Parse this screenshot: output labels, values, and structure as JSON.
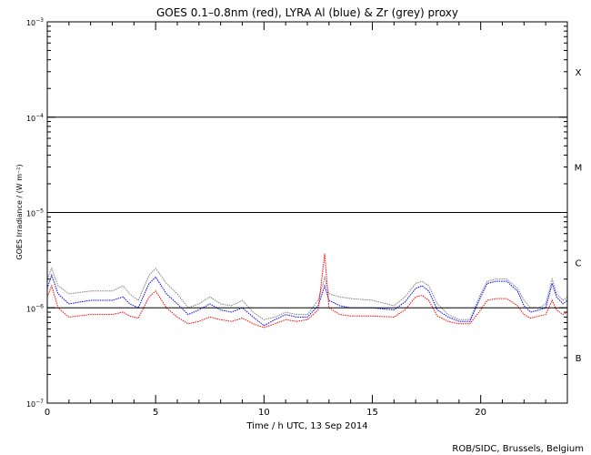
{
  "chart_data": {
    "type": "line",
    "title": "GOES 0.1–0.8nm (red), LYRA Al (blue) & Zr (grey) proxy",
    "xlabel": "Time / h UTC, 13 Sep 2014",
    "ylabel": "GOES Irradiance / (W m⁻²)",
    "xlim": [
      0,
      24
    ],
    "ylim": [
      1e-07,
      0.001
    ],
    "yscale": "log",
    "x_ticks": [
      0,
      5,
      10,
      15,
      20
    ],
    "x_tick_labels": [
      "0",
      "5",
      "10",
      "15",
      "20"
    ],
    "y_ticks": [
      1e-07,
      1e-06,
      1e-05,
      0.0001,
      0.001
    ],
    "y_tick_labels": [
      {
        "base": "10",
        "exp": "−7"
      },
      {
        "base": "10",
        "exp": "−6"
      },
      {
        "base": "10",
        "exp": "−5"
      },
      {
        "base": "10",
        "exp": "−4"
      },
      {
        "base": "10",
        "exp": "−3"
      }
    ],
    "class_lines": [
      1e-06,
      1e-05,
      0.0001
    ],
    "class_labels": [
      {
        "label": "X",
        "value": 0.0003
      },
      {
        "label": "M",
        "value": 3e-05
      },
      {
        "label": "C",
        "value": 3e-06
      },
      {
        "label": "B",
        "value": 3e-07
      }
    ],
    "series": [
      {
        "color": "#7f7f7f",
        "x": [
          0.0,
          0.2,
          0.5,
          1.0,
          2.0,
          3.0,
          3.5,
          3.8,
          4.2,
          4.7,
          5.0,
          5.5,
          6.0,
          6.5,
          7.0,
          7.5,
          8.0,
          8.5,
          9.0,
          9.5,
          10.0,
          10.5,
          11.0,
          11.5,
          12.0,
          12.5,
          12.8,
          13.0,
          13.5,
          14.0,
          15.0,
          16.0,
          16.5,
          17.0,
          17.3,
          17.6,
          18.0,
          18.5,
          19.0,
          19.5,
          20.0,
          20.3,
          20.7,
          21.2,
          21.7,
          22.0,
          22.3,
          22.7,
          23.0,
          23.3,
          23.5,
          23.8,
          24.0
        ],
        "y": [
          2e-06,
          2.6e-06,
          1.7e-06,
          1.4e-06,
          1.5e-06,
          1.5e-06,
          1.7e-06,
          1.4e-06,
          1.2e-06,
          2.2e-06,
          2.6e-06,
          1.8e-06,
          1.4e-06,
          1e-06,
          1.1e-06,
          1.3e-06,
          1.1e-06,
          1.05e-06,
          1.2e-06,
          9e-07,
          7.5e-07,
          8e-07,
          9e-07,
          8.5e-07,
          8.5e-07,
          1.2e-06,
          2.1e-06,
          1.4e-06,
          1.3e-06,
          1.25e-06,
          1.2e-06,
          1.05e-06,
          1.3e-06,
          1.8e-06,
          1.9e-06,
          1.7e-06,
          1.1e-06,
          8.5e-07,
          7.5e-07,
          7.5e-07,
          1.4e-06,
          1.9e-06,
          2e-06,
          2e-06,
          1.6e-06,
          1.2e-06,
          1e-06,
          1e-06,
          1.1e-06,
          2e-06,
          1.4e-06,
          1.2e-06,
          1.3e-06
        ]
      },
      {
        "color": "#0000ff",
        "x": [
          0.0,
          0.2,
          0.5,
          1.0,
          2.0,
          3.0,
          3.5,
          3.8,
          4.2,
          4.7,
          5.0,
          5.5,
          6.0,
          6.5,
          7.0,
          7.5,
          8.0,
          8.5,
          9.0,
          9.5,
          10.0,
          10.5,
          11.0,
          11.5,
          12.0,
          12.5,
          12.8,
          13.0,
          13.5,
          14.0,
          15.0,
          16.0,
          16.5,
          17.0,
          17.3,
          17.6,
          18.0,
          18.5,
          19.0,
          19.5,
          20.0,
          20.3,
          20.7,
          21.2,
          21.7,
          22.0,
          22.3,
          22.7,
          23.0,
          23.3,
          23.5,
          23.8,
          24.0
        ],
        "y": [
          1.6e-06,
          2.2e-06,
          1.4e-06,
          1.1e-06,
          1.2e-06,
          1.2e-06,
          1.3e-06,
          1.1e-06,
          1e-06,
          1.8e-06,
          2.1e-06,
          1.4e-06,
          1.1e-06,
          8.5e-07,
          9.5e-07,
          1.1e-06,
          9.5e-07,
          9e-07,
          1e-06,
          8e-07,
          6.5e-07,
          7.5e-07,
          8.5e-07,
          8e-07,
          8e-07,
          1.05e-06,
          1.7e-06,
          1.2e-06,
          1.05e-06,
          1e-06,
          1e-06,
          9.5e-07,
          1.15e-06,
          1.6e-06,
          1.7e-06,
          1.5e-06,
          9.5e-07,
          8e-07,
          7.2e-07,
          7.2e-07,
          1.3e-06,
          1.8e-06,
          1.9e-06,
          1.9e-06,
          1.5e-06,
          1.05e-06,
          9e-07,
          9.5e-07,
          1e-06,
          1.8e-06,
          1.3e-06,
          1.1e-06,
          1.2e-06
        ]
      },
      {
        "color": "#ff0000",
        "x": [
          0.0,
          0.2,
          0.5,
          1.0,
          2.0,
          3.0,
          3.5,
          3.8,
          4.2,
          4.7,
          5.0,
          5.5,
          6.0,
          6.5,
          7.0,
          7.5,
          8.0,
          8.5,
          9.0,
          9.5,
          10.0,
          10.5,
          11.0,
          11.5,
          12.0,
          12.5,
          12.8,
          13.0,
          13.5,
          14.0,
          15.0,
          16.0,
          16.5,
          17.0,
          17.3,
          17.6,
          18.0,
          18.5,
          19.0,
          19.5,
          20.0,
          20.3,
          20.7,
          21.2,
          21.7,
          22.0,
          22.3,
          22.7,
          23.0,
          23.3,
          23.5,
          23.8,
          24.0
        ],
        "y": [
          1.3e-06,
          1.7e-06,
          1e-06,
          8e-07,
          8.5e-07,
          8.5e-07,
          9e-07,
          8.2e-07,
          7.8e-07,
          1.3e-06,
          1.5e-06,
          1e-06,
          8e-07,
          6.8e-07,
          7.2e-07,
          8e-07,
          7.5e-07,
          7.2e-07,
          7.8e-07,
          6.8e-07,
          6.2e-07,
          6.8e-07,
          7.5e-07,
          7.2e-07,
          7.5e-07,
          9.5e-07,
          3.7e-06,
          1e-06,
          8.5e-07,
          8.2e-07,
          8.2e-07,
          8e-07,
          9.5e-07,
          1.3e-06,
          1.35e-06,
          1.2e-06,
          8.2e-07,
          7.2e-07,
          6.8e-07,
          6.8e-07,
          9.5e-07,
          1.2e-06,
          1.25e-06,
          1.25e-06,
          1.05e-06,
          8.5e-07,
          7.8e-07,
          8.2e-07,
          8.5e-07,
          1.2e-06,
          9.5e-07,
          8.5e-07,
          9e-07
        ]
      }
    ]
  },
  "footer": "ROB/SIDC, Brussels, Belgium"
}
